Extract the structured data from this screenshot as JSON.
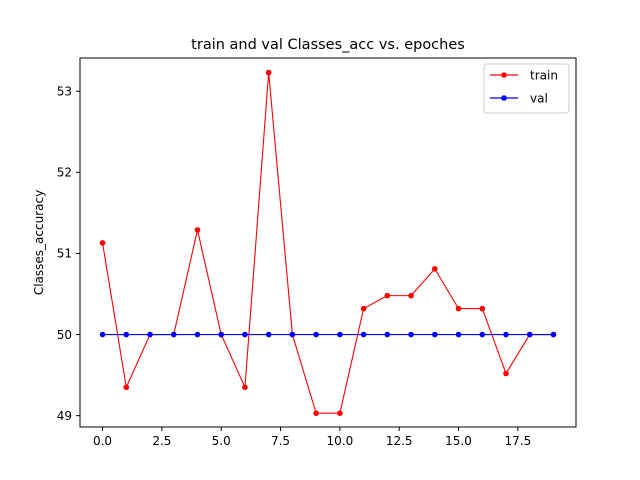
{
  "chart_data": {
    "type": "line",
    "title": "train and val Classes_acc vs. epoches",
    "xlabel": "",
    "ylabel": "Classes_accuracy",
    "x": [
      0,
      1,
      2,
      3,
      4,
      5,
      6,
      7,
      8,
      9,
      10,
      11,
      12,
      13,
      14,
      15,
      16,
      17,
      18,
      19
    ],
    "xlim": [
      -0.95,
      19.95
    ],
    "ylim": [
      48.86,
      53.41
    ],
    "xticks": [
      0.0,
      2.5,
      5.0,
      7.5,
      10.0,
      12.5,
      15.0,
      17.5
    ],
    "xtick_labels": [
      "0.0",
      "2.5",
      "5.0",
      "7.5",
      "10.0",
      "12.5",
      "15.0",
      "17.5"
    ],
    "yticks": [
      49,
      50,
      51,
      52,
      53
    ],
    "ytick_labels": [
      "49",
      "50",
      "51",
      "52",
      "53"
    ],
    "grid": false,
    "legend_position": "top-right",
    "series": [
      {
        "name": "train",
        "color": "#ff0000",
        "marker": "circle",
        "values": [
          51.13,
          49.35,
          50.0,
          50.0,
          51.29,
          50.0,
          49.35,
          53.23,
          50.0,
          49.03,
          49.03,
          50.32,
          50.48,
          50.48,
          50.81,
          50.32,
          50.32,
          49.52,
          50.0,
          50.0
        ]
      },
      {
        "name": "val",
        "color": "#0000ff",
        "marker": "circle",
        "values": [
          50.0,
          50.0,
          50.0,
          50.0,
          50.0,
          50.0,
          50.0,
          50.0,
          50.0,
          50.0,
          50.0,
          50.0,
          50.0,
          50.0,
          50.0,
          50.0,
          50.0,
          50.0,
          50.0,
          50.0
        ]
      }
    ]
  }
}
